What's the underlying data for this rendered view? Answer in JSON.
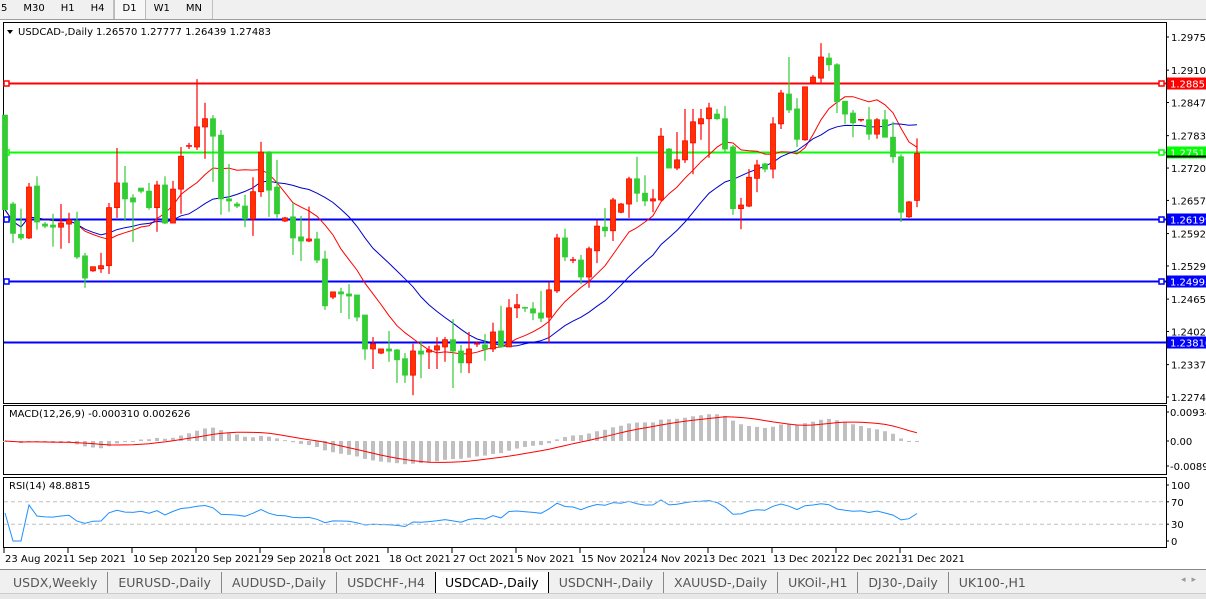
{
  "toolbar": {
    "timeframes": [
      "5",
      "M30",
      "H1",
      "H4",
      "D1",
      "W1",
      "MN"
    ],
    "selected": "D1"
  },
  "chart_header": {
    "symbol": "USDCAD-,Daily",
    "ohlc": "1.26570 1.27777 1.26439 1.27483"
  },
  "colors": {
    "bull_candle": "#ff3300",
    "bear_candle": "#33cc33",
    "fast_ma": "#ff0000",
    "slow_ma": "#0000cc",
    "macd_hist": "#c0c0c0",
    "macd_signal": "#ff0000",
    "rsi_line": "#1e90ff"
  },
  "chart_data": [
    {
      "type": "candlestick",
      "title": "USDCAD-,Daily",
      "ylim": [
        1.22745,
        1.2975
      ],
      "yticks": [
        "1.29750",
        "1.29105",
        "1.28475",
        "1.27830",
        "1.27200",
        "1.26570",
        "1.25925",
        "1.25295",
        "1.24650",
        "1.24020",
        "1.23375",
        "1.22745"
      ],
      "xtick_labels": [
        "23 Aug 2021",
        "1 Sep 2021",
        "10 Sep 2021",
        "20 Sep 2021",
        "29 Sep 2021",
        "8 Oct 2021",
        "18 Oct 2021",
        "27 Oct 2021",
        "5 Nov 2021",
        "15 Nov 2021",
        "24 Nov 2021",
        "3 Dec 2021",
        "13 Dec 2021",
        "22 Dec 2021",
        "31 Dec 2021"
      ],
      "xtick_every_bars": 8,
      "grid": false,
      "horizontal_lines": [
        {
          "price": "1.28851",
          "color": "#ff0000"
        },
        {
          "price": "1.27515",
          "color": "#00ff00"
        },
        {
          "price": "1.26199",
          "color": "#0000ff"
        },
        {
          "price": "1.24995",
          "color": "#0000ff"
        },
        {
          "price": "1.23810",
          "color": "#0000ff"
        }
      ],
      "ohlc": [
        [
          1.2823,
          1.2823,
          1.2639,
          1.2639
        ],
        [
          1.265,
          1.2654,
          1.2574,
          1.2593
        ],
        [
          1.2591,
          1.2641,
          1.258,
          1.2584
        ],
        [
          1.2584,
          1.2691,
          1.2582,
          1.2683
        ],
        [
          1.2685,
          1.2704,
          1.26,
          1.2615
        ],
        [
          1.2611,
          1.2615,
          1.2603,
          1.2607
        ],
        [
          1.2609,
          1.2631,
          1.2567,
          1.2605
        ],
        [
          1.2605,
          1.265,
          1.2563,
          1.2613
        ],
        [
          1.2611,
          1.2633,
          1.2574,
          1.2619
        ],
        [
          1.2617,
          1.2635,
          1.2543,
          1.2547
        ],
        [
          1.2549,
          1.2555,
          1.2487,
          1.2506
        ],
        [
          1.252,
          1.2528,
          1.2518,
          1.2528
        ],
        [
          1.2524,
          1.2555,
          1.2516,
          1.253
        ],
        [
          1.253,
          1.2652,
          1.2514,
          1.2643
        ],
        [
          1.2643,
          1.2759,
          1.2623,
          1.2691
        ],
        [
          1.2691,
          1.2724,
          1.2617,
          1.266
        ],
        [
          1.2662,
          1.2669,
          1.2576,
          1.2654
        ],
        [
          1.2681,
          1.2681,
          1.2671,
          1.2675
        ],
        [
          1.2675,
          1.2691,
          1.2639,
          1.2643
        ],
        [
          1.2643,
          1.2695,
          1.2596,
          1.2687
        ],
        [
          1.2687,
          1.2704,
          1.2611,
          1.2613
        ],
        [
          1.2613,
          1.2695,
          1.2613,
          1.2679
        ],
        [
          1.2679,
          1.2761,
          1.2631,
          1.2743
        ],
        [
          1.2763,
          1.2769,
          1.2757,
          1.2763
        ],
        [
          1.2761,
          1.2893,
          1.2755,
          1.28
        ],
        [
          1.28,
          1.2847,
          1.2738,
          1.2816
        ],
        [
          1.2816,
          1.2823,
          1.2693,
          1.2782
        ],
        [
          1.2784,
          1.2794,
          1.2629,
          1.266
        ],
        [
          1.266,
          1.2728,
          1.2635,
          1.2656
        ],
        [
          1.265,
          1.2654,
          1.2642,
          1.2646
        ],
        [
          1.2646,
          1.2668,
          1.2605,
          1.2621
        ],
        [
          1.2621,
          1.2702,
          1.2588,
          1.2674
        ],
        [
          1.2674,
          1.2771,
          1.2664,
          1.2751
        ],
        [
          1.2751,
          1.2753,
          1.2625,
          1.2677
        ],
        [
          1.2683,
          1.2736,
          1.2623,
          1.2631
        ],
        [
          1.2617,
          1.2625,
          1.2615,
          1.2623
        ],
        [
          1.2625,
          1.2652,
          1.2551,
          1.2584
        ],
        [
          1.2586,
          1.2627,
          1.2539,
          1.2578
        ],
        [
          1.2578,
          1.2645,
          1.2576,
          1.2582
        ],
        [
          1.2582,
          1.2596,
          1.2535,
          1.2541
        ],
        [
          1.2543,
          1.2559,
          1.2444,
          1.2452
        ],
        [
          1.2469,
          1.2479,
          1.2465,
          1.2479
        ],
        [
          1.2479,
          1.2487,
          1.2438,
          1.2475
        ],
        [
          1.2475,
          1.2494,
          1.2426,
          1.2471
        ],
        [
          1.2473,
          1.2473,
          1.2422,
          1.243
        ],
        [
          1.2434,
          1.2434,
          1.2347,
          1.2368
        ],
        [
          1.2368,
          1.2391,
          1.2329,
          1.2378
        ],
        [
          1.236,
          1.2368,
          1.2358,
          1.2368
        ],
        [
          1.2368,
          1.2403,
          1.2343,
          1.2364
        ],
        [
          1.2366,
          1.2368,
          1.2302,
          1.2347
        ],
        [
          1.2349,
          1.236,
          1.2302,
          1.2317
        ],
        [
          1.2317,
          1.2378,
          1.2278,
          1.2364
        ],
        [
          1.2364,
          1.2384,
          1.2311,
          1.2358
        ],
        [
          1.2362,
          1.2374,
          1.2329,
          1.2366
        ],
        [
          1.2366,
          1.2391,
          1.2329,
          1.2374
        ],
        [
          1.2372,
          1.2391,
          1.2343,
          1.2386
        ],
        [
          1.2386,
          1.2426,
          1.2292,
          1.2364
        ],
        [
          1.2364,
          1.2376,
          1.2321,
          1.2341
        ],
        [
          1.2341,
          1.2401,
          1.2321,
          1.2368
        ],
        [
          1.2378,
          1.2382,
          1.2372,
          1.2378
        ],
        [
          1.2376,
          1.2397,
          1.2345,
          1.2368
        ],
        [
          1.2368,
          1.2419,
          1.2362,
          1.2401
        ],
        [
          1.2403,
          1.2452,
          1.2372,
          1.2372
        ],
        [
          1.2372,
          1.2465,
          1.2372,
          1.2448
        ],
        [
          1.2448,
          1.2475,
          1.2428,
          1.2454
        ],
        [
          1.2448,
          1.245,
          1.244,
          1.2446
        ],
        [
          1.2446,
          1.2459,
          1.2424,
          1.2438
        ],
        [
          1.2438,
          1.2481,
          1.242,
          1.2428
        ],
        [
          1.243,
          1.2498,
          1.238,
          1.2483
        ],
        [
          1.2481,
          1.2592,
          1.2477,
          1.2584
        ],
        [
          1.2584,
          1.2602,
          1.2539,
          1.2547
        ],
        [
          1.2539,
          1.2547,
          1.2535,
          1.2541
        ],
        [
          1.2541,
          1.2551,
          1.2494,
          1.2508
        ],
        [
          1.2508,
          1.2567,
          1.2487,
          1.2563
        ],
        [
          1.2559,
          1.2619,
          1.2535,
          1.2607
        ],
        [
          1.2605,
          1.2642,
          1.2586,
          1.2598
        ],
        [
          1.2598,
          1.2662,
          1.2578,
          1.2658
        ],
        [
          1.2634,
          1.2652,
          1.2632,
          1.265
        ],
        [
          1.265,
          1.2703,
          1.2623,
          1.2699
        ],
        [
          1.2699,
          1.2742,
          1.2654,
          1.2671
        ],
        [
          1.2671,
          1.2706,
          1.2646,
          1.2656
        ],
        [
          1.2656,
          1.2679,
          1.2634,
          1.266
        ],
        [
          1.2658,
          1.2798,
          1.2656,
          1.2782
        ],
        [
          1.2757,
          1.2759,
          1.272,
          1.272
        ],
        [
          1.272,
          1.279,
          1.2716,
          1.2736
        ],
        [
          1.2736,
          1.2835,
          1.273,
          1.2773
        ],
        [
          1.2769,
          1.2835,
          1.2708,
          1.281
        ],
        [
          1.2806,
          1.2835,
          1.2775,
          1.2816
        ],
        [
          1.2816,
          1.2847,
          1.274,
          1.2837
        ],
        [
          1.2825,
          1.2835,
          1.2814,
          1.2816
        ],
        [
          1.2816,
          1.2841,
          1.2749,
          1.2757
        ],
        [
          1.2761,
          1.2765,
          1.2629,
          1.2641
        ],
        [
          1.2641,
          1.2662,
          1.2601,
          1.2648
        ],
        [
          1.2646,
          1.2718,
          1.2644,
          1.2702
        ],
        [
          1.27,
          1.2736,
          1.2673,
          1.2726
        ],
        [
          1.2728,
          1.273,
          1.2712,
          1.2718
        ],
        [
          1.2718,
          1.2819,
          1.27,
          1.2806
        ],
        [
          1.2806,
          1.2872,
          1.2796,
          1.2866
        ],
        [
          1.2864,
          1.2936,
          1.2827,
          1.2833
        ],
        [
          1.2835,
          1.2856,
          1.2761,
          1.2776
        ],
        [
          1.2775,
          1.2878,
          1.2773,
          1.2878
        ],
        [
          1.2886,
          1.2901,
          1.2884,
          1.2897
        ],
        [
          1.2895,
          1.2963,
          1.2886,
          1.2936
        ],
        [
          1.2934,
          1.2944,
          1.2909,
          1.2921
        ],
        [
          1.2921,
          1.2924,
          1.2827,
          1.2849
        ],
        [
          1.285,
          1.285,
          1.2806,
          1.2825
        ],
        [
          1.2827,
          1.2833,
          1.278,
          1.2808
        ],
        [
          1.2812,
          1.2815,
          1.281,
          1.2814
        ],
        [
          1.2814,
          1.2839,
          1.2775,
          1.2786
        ],
        [
          1.2786,
          1.2817,
          1.2777,
          1.2814
        ],
        [
          1.2814,
          1.2833,
          1.278,
          1.278
        ],
        [
          1.278,
          1.281,
          1.273,
          1.2742
        ],
        [
          1.2742,
          1.2747,
          1.2615,
          1.2634
        ],
        [
          1.2625,
          1.2656,
          1.2623,
          1.2654
        ],
        [
          1.2657,
          1.27777,
          1.26439,
          1.27483
        ]
      ]
    },
    {
      "type": "bar+line",
      "title": "MACD(12,26,9) -0.000310 0.002626",
      "ylim": [
        -0.0089,
        0.009345
      ],
      "yticks": [
        "0.009345",
        "0.00",
        "-0.00890"
      ]
    },
    {
      "type": "line",
      "title": "RSI(14) 48.8815",
      "ylim": [
        0,
        100
      ],
      "yticks": [
        "100",
        "70",
        "30",
        "0"
      ],
      "levels": [
        70,
        30
      ]
    }
  ],
  "tabs": [
    "USDX,Weekly",
    "EURUSD-,Daily",
    "AUDUSD-,Daily",
    "USDCHF-,H4",
    "USDCAD-,Daily",
    "USDCNH-,Daily",
    "XAUUSD-,Daily",
    "UKOil-,H1",
    "DJ30-,Daily",
    "UK100-,H1"
  ],
  "active_tab": "USDCAD-,Daily",
  "tab_scroll": {
    "left_icon": "◂",
    "right_icon": "▸"
  }
}
